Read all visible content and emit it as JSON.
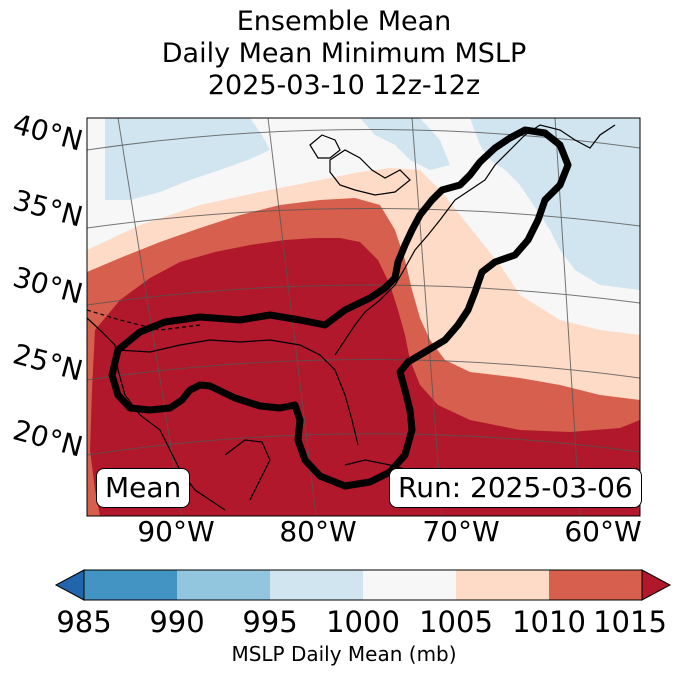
{
  "title": {
    "line1": "Ensemble Mean",
    "line2": "Daily Mean Minimum MSLP",
    "line3": "2025-03-10 12z-12z"
  },
  "lat_labels": [
    "40°N",
    "35°N",
    "30°N",
    "25°N",
    "20°N"
  ],
  "lon_labels": [
    "90°W",
    "80°W",
    "70°W",
    "60°W"
  ],
  "panel_labels": {
    "left": "Mean",
    "right": "Run: 2025-03-06"
  },
  "colorbar": {
    "title": "MSLP Daily Mean (mb)",
    "ticks": [
      "985",
      "990",
      "995",
      "1000",
      "1005",
      "1010",
      "1015"
    ],
    "colors": [
      "#2166ac",
      "#4393c3",
      "#92c5de",
      "#d1e5f0",
      "#f7f7f7",
      "#fddbc7",
      "#d6604d",
      "#b2182b"
    ]
  }
}
